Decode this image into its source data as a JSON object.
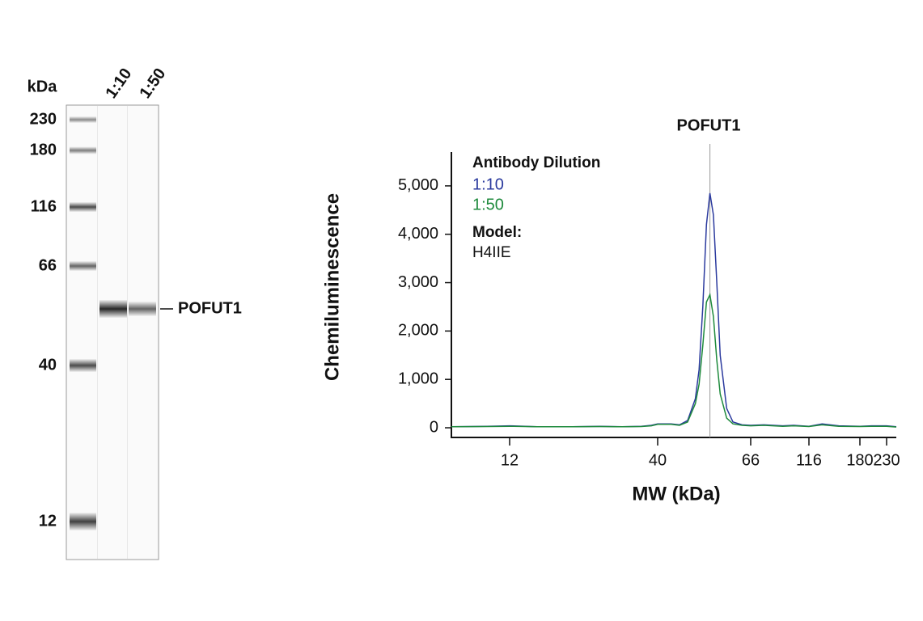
{
  "blot": {
    "unit_label": "kDa",
    "lanes": [
      "1:10",
      "1:50"
    ],
    "markers": [
      "230",
      "180",
      "116",
      "66",
      "40",
      "12"
    ],
    "band_label": "POFUT1"
  },
  "chart_data": {
    "type": "line",
    "title": "POFUT1",
    "xlabel": "MW (kDa)",
    "ylabel": "Chemiluminescence",
    "legend_title": "Antibody Dilution",
    "model_label": "Model:",
    "model": "H4IIE",
    "peak_line": 53,
    "x": [
      7.5,
      10,
      12,
      15,
      20,
      25,
      30,
      35,
      38,
      40,
      43,
      45,
      47,
      49,
      50,
      51,
      52,
      53,
      54,
      55,
      56,
      58,
      60,
      63,
      66,
      75,
      90,
      100,
      116,
      130,
      150,
      180,
      200,
      230,
      250
    ],
    "series": [
      {
        "name": "1:10",
        "color": "#2b3a9e",
        "values": [
          20,
          30,
          40,
          20,
          20,
          30,
          20,
          30,
          50,
          80,
          80,
          60,
          150,
          600,
          1200,
          2500,
          4200,
          4850,
          4400,
          3000,
          1500,
          400,
          120,
          60,
          50,
          60,
          40,
          50,
          30,
          80,
          40,
          30,
          40,
          40,
          20
        ]
      },
      {
        "name": "1:50",
        "color": "#1e8a3c",
        "values": [
          20,
          25,
          30,
          20,
          20,
          25,
          20,
          25,
          40,
          70,
          70,
          50,
          120,
          500,
          900,
          1700,
          2600,
          2750,
          2300,
          1400,
          700,
          200,
          80,
          50,
          40,
          50,
          30,
          40,
          25,
          60,
          30,
          25,
          30,
          30,
          15
        ]
      }
    ],
    "xlim": [
      7.5,
      250
    ],
    "xticks": [
      12,
      40,
      66,
      116,
      180,
      230
    ],
    "ylim": [
      -200,
      5700
    ],
    "yticks": [
      0,
      {
        "value": 1000,
        "label": "1,000"
      },
      {
        "value": 2000,
        "label": "2,000"
      },
      {
        "value": 3000,
        "label": "3,000"
      },
      {
        "value": 4000,
        "label": "4,000"
      },
      {
        "value": 5000,
        "label": "5,000"
      }
    ]
  }
}
